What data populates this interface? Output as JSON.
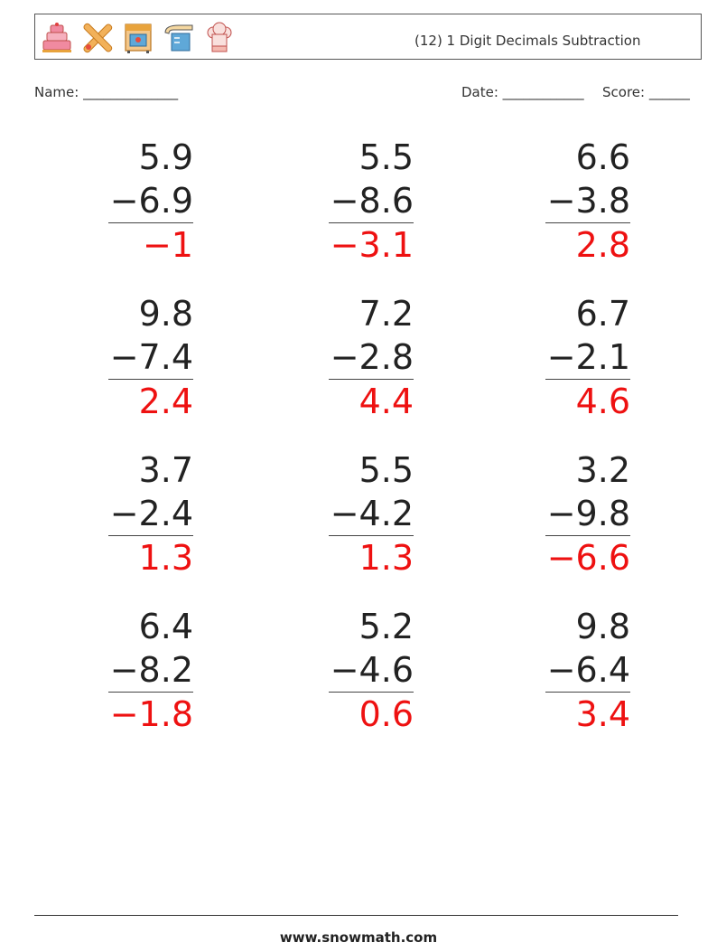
{
  "header": {
    "title": "(12) 1 Digit Decimals Subtraction",
    "icons": [
      "cake-icon",
      "rolling-pin-icon",
      "oven-icon",
      "measuring-cup-icon",
      "chef-hat-icon"
    ]
  },
  "info": {
    "name_label": "Name: ______________",
    "date_label": "Date: ____________",
    "score_label": "Score: ______"
  },
  "problems": [
    {
      "top": "5.9",
      "sub": "−6.9",
      "ans": "−1"
    },
    {
      "top": "5.5",
      "sub": "−8.6",
      "ans": "−3.1"
    },
    {
      "top": "6.6",
      "sub": "−3.8",
      "ans": "2.8"
    },
    {
      "top": "9.8",
      "sub": "−7.4",
      "ans": "2.4"
    },
    {
      "top": "7.2",
      "sub": "−2.8",
      "ans": "4.4"
    },
    {
      "top": "6.7",
      "sub": "−2.1",
      "ans": "4.6"
    },
    {
      "top": "3.7",
      "sub": "−2.4",
      "ans": "1.3"
    },
    {
      "top": "5.5",
      "sub": "−4.2",
      "ans": "1.3"
    },
    {
      "top": "3.2",
      "sub": "−9.8",
      "ans": "−6.6"
    },
    {
      "top": "6.4",
      "sub": "−8.2",
      "ans": "−1.8"
    },
    {
      "top": "5.2",
      "sub": "−4.6",
      "ans": "0.6"
    },
    {
      "top": "9.8",
      "sub": "−6.4",
      "ans": "3.4"
    }
  ],
  "colors": {
    "answer": "#ee1111",
    "text": "#222222"
  },
  "footer": {
    "site": "www.snowmath.com"
  }
}
